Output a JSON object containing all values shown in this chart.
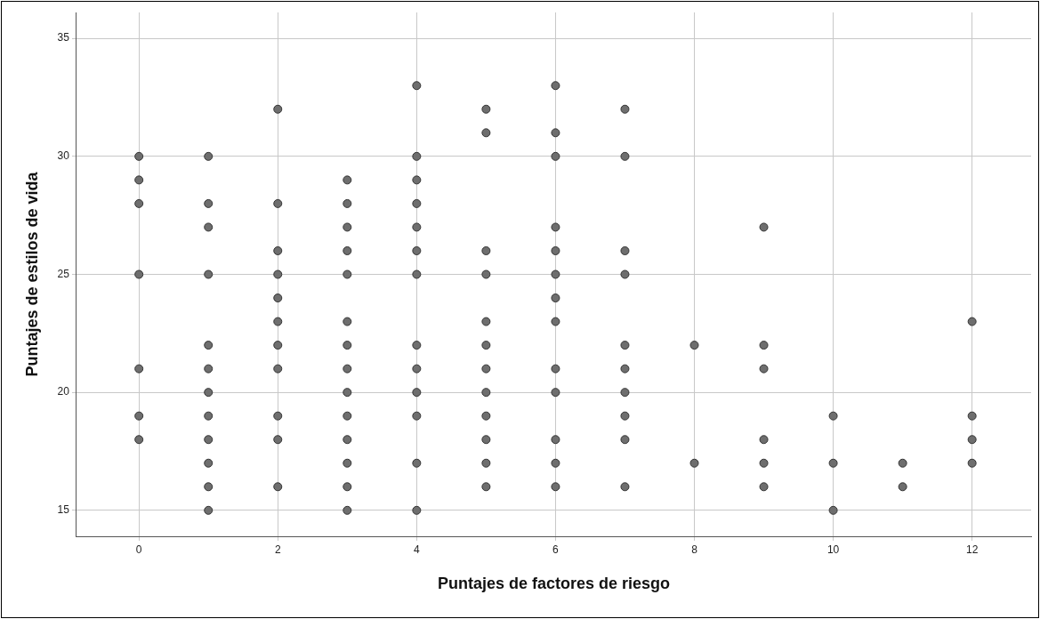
{
  "chart_data": {
    "type": "scatter",
    "xlabel": "Puntajes de factores de riesgo",
    "ylabel": "Puntajes de estilos de vida",
    "x": [
      0,
      0,
      0,
      0,
      0,
      0,
      0,
      1,
      1,
      1,
      1,
      1,
      1,
      1,
      1,
      1,
      1,
      1,
      1,
      2,
      2,
      2,
      2,
      2,
      2,
      2,
      2,
      2,
      2,
      2,
      3,
      3,
      3,
      3,
      3,
      3,
      3,
      3,
      3,
      3,
      3,
      3,
      3,
      3,
      4,
      4,
      4,
      4,
      4,
      4,
      4,
      4,
      4,
      4,
      4,
      4,
      4,
      5,
      5,
      5,
      5,
      5,
      5,
      5,
      5,
      5,
      5,
      5,
      5,
      6,
      6,
      6,
      6,
      6,
      6,
      6,
      6,
      6,
      6,
      6,
      6,
      6,
      7,
      7,
      7,
      7,
      7,
      7,
      7,
      7,
      7,
      7,
      8,
      8,
      9,
      9,
      9,
      9,
      9,
      9,
      10,
      10,
      10,
      11,
      11,
      12,
      12,
      12,
      12
    ],
    "series": [
      {
        "color": "#6e6e6e",
        "values": [
          30,
          29,
          28,
          25,
          21,
          19,
          18,
          30,
          28,
          27,
          25,
          22,
          21,
          20,
          19,
          18,
          17,
          16,
          15,
          32,
          28,
          26,
          25,
          24,
          23,
          22,
          21,
          19,
          18,
          16,
          29,
          28,
          27,
          26,
          25,
          23,
          22,
          21,
          20,
          19,
          18,
          17,
          16,
          15,
          33,
          30,
          29,
          28,
          27,
          26,
          25,
          22,
          21,
          20,
          19,
          17,
          15,
          32,
          31,
          26,
          25,
          23,
          22,
          21,
          20,
          19,
          18,
          17,
          16,
          33,
          31,
          30,
          27,
          26,
          25,
          24,
          23,
          21,
          20,
          18,
          17,
          16,
          32,
          30,
          26,
          25,
          22,
          21,
          20,
          19,
          18,
          16,
          22,
          17,
          27,
          22,
          21,
          18,
          17,
          16,
          19,
          17,
          15,
          17,
          16,
          23,
          19,
          18,
          17
        ]
      }
    ],
    "xlim": [
      -0.9,
      12.85
    ],
    "ylim": [
      13.9,
      36.1
    ],
    "xticks": [
      0,
      2,
      4,
      6,
      8,
      10,
      12
    ],
    "yticks": [
      15,
      20,
      25,
      30,
      35
    ],
    "grid": true,
    "legend": false,
    "marker": "circle"
  }
}
